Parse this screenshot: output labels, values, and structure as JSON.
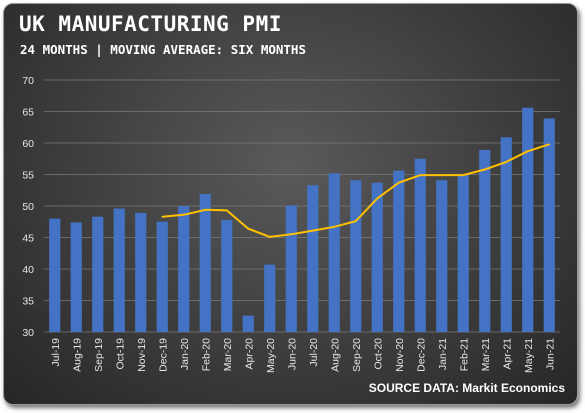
{
  "header": {
    "title": "UK MANUFACTURING PMI",
    "subtitle": "24 MONTHS | MOVING AVERAGE: SIX MONTHS"
  },
  "footer": {
    "source": "SOURCE DATA: Markit Economics"
  },
  "colors": {
    "bar": "#4472c4",
    "line": "#ffc000",
    "grid": "#7a7a7a"
  },
  "chart_data": {
    "type": "bar",
    "categories": [
      "Jul-19",
      "Aug-19",
      "Sep-19",
      "Oct-19",
      "Nov-19",
      "Dec-19",
      "Jan-20",
      "Feb-20",
      "Mar-20",
      "Apr-20",
      "May-20",
      "Jun-20",
      "Jul-20",
      "Aug-20",
      "Sep-20",
      "Oct-20",
      "Nov-20",
      "Dec-20",
      "Jan-21",
      "Feb-21",
      "Mar-21",
      "Apr-21",
      "May-21",
      "Jun-21"
    ],
    "series": [
      {
        "type": "bar",
        "values": [
          48.0,
          47.4,
          48.3,
          49.6,
          48.9,
          47.5,
          50.0,
          51.9,
          47.8,
          32.6,
          40.7,
          50.1,
          53.3,
          55.2,
          54.1,
          53.7,
          55.6,
          57.5,
          54.1,
          55.1,
          58.9,
          60.9,
          65.6,
          63.9
        ]
      },
      {
        "type": "line",
        "values": [
          null,
          null,
          null,
          null,
          null,
          48.3,
          48.6,
          49.4,
          49.3,
          46.4,
          45.1,
          45.5,
          46.1,
          46.7,
          47.6,
          51.2,
          53.7,
          54.9,
          54.9,
          54.9,
          55.8,
          57.0,
          58.7,
          59.8
        ]
      }
    ],
    "xlabel": "",
    "ylabel": "",
    "ylim": [
      30,
      70
    ],
    "yticks": [
      30,
      35,
      40,
      45,
      50,
      55,
      60,
      65,
      70
    ],
    "grid": true,
    "legend": "none"
  }
}
